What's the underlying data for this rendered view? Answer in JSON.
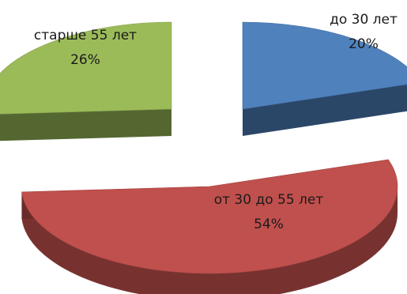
{
  "chart_data": {
    "type": "pie",
    "style": "3d-exploded",
    "slices": [
      {
        "label": "до 30 лет",
        "value": 20,
        "value_label": "20%",
        "color": "#4f81bd"
      },
      {
        "label": "от 30 до 55 лет",
        "value": 54,
        "value_label": "54%",
        "color": "#c0504d"
      },
      {
        "label": "старше 55 лет",
        "value": 26,
        "value_label": "26%",
        "color": "#9bbb59"
      }
    ],
    "legend": "none",
    "data_labels": "category and percent"
  }
}
